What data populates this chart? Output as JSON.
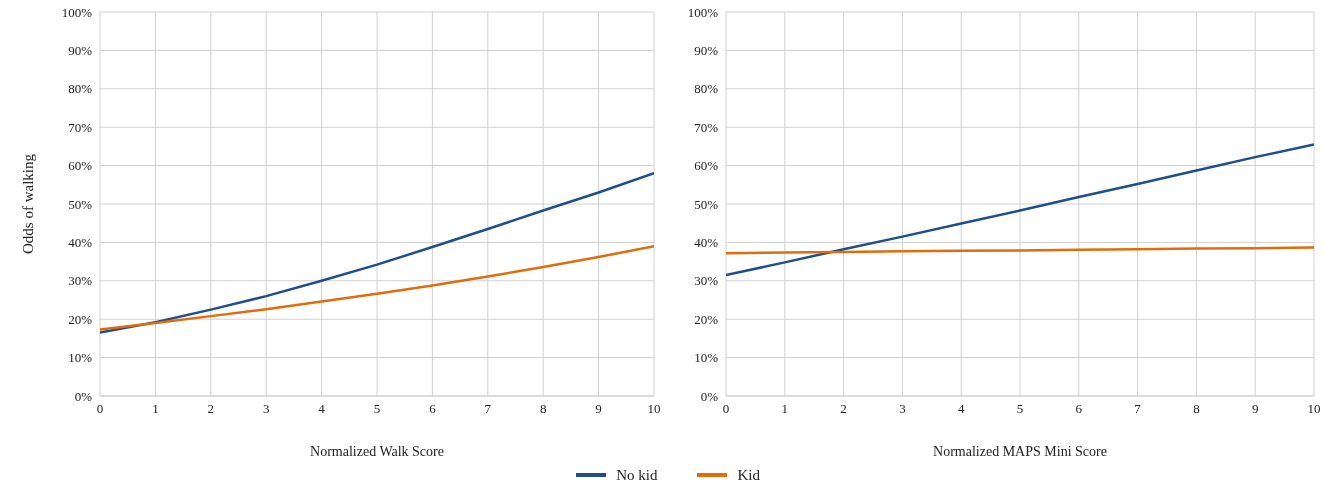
{
  "chart_data": [
    {
      "type": "line",
      "xlabel": "Normalized Walk Score",
      "ylabel": "Odds of walking",
      "x": [
        0,
        1,
        2,
        3,
        4,
        5,
        6,
        7,
        8,
        9,
        10
      ],
      "xlim": [
        0,
        10
      ],
      "xticks": [
        0,
        1,
        2,
        3,
        4,
        5,
        6,
        7,
        8,
        9,
        10
      ],
      "ylim": [
        0,
        100
      ],
      "yticks": [
        {
          "value": 0,
          "label": "0%"
        },
        {
          "value": 10,
          "label": "10%"
        },
        {
          "value": 20,
          "label": "20%"
        },
        {
          "value": 30,
          "label": "30%"
        },
        {
          "value": 40,
          "label": "40%"
        },
        {
          "value": 50,
          "label": "50%"
        },
        {
          "value": 60,
          "label": "60%"
        },
        {
          "value": 70,
          "label": "70%"
        },
        {
          "value": 80,
          "label": "80%"
        },
        {
          "value": 90,
          "label": "90%"
        },
        {
          "value": 100,
          "label": "100%"
        }
      ],
      "grid": true,
      "legend": "bottom",
      "marker": "none",
      "series": [
        {
          "name": "No kid",
          "color": "#1f4e8c",
          "values": [
            16.5,
            19.2,
            22.5,
            26,
            30,
            34.2,
            38.8,
            43.5,
            48.3,
            53,
            58
          ]
        },
        {
          "name": "Kid",
          "color": "#e36c0a",
          "values": [
            17.3,
            19,
            20.8,
            22.6,
            24.6,
            26.6,
            28.8,
            31.1,
            33.6,
            36.2,
            39
          ]
        }
      ]
    },
    {
      "type": "line",
      "xlabel": "Normalized MAPS Mini Score",
      "x": [
        0,
        1,
        2,
        3,
        4,
        5,
        6,
        7,
        8,
        9,
        10
      ],
      "xlim": [
        0,
        10
      ],
      "xticks": [
        0,
        1,
        2,
        3,
        4,
        5,
        6,
        7,
        8,
        9,
        10
      ],
      "ylim": [
        0,
        100
      ],
      "yticks": [
        {
          "value": 0,
          "label": "0%"
        },
        {
          "value": 10,
          "label": "10%"
        },
        {
          "value": 20,
          "label": "20%"
        },
        {
          "value": 30,
          "label": "30%"
        },
        {
          "value": 40,
          "label": "40%"
        },
        {
          "value": 50,
          "label": "50%"
        },
        {
          "value": 60,
          "label": "60%"
        },
        {
          "value": 70,
          "label": "70%"
        },
        {
          "value": 80,
          "label": "80%"
        },
        {
          "value": 90,
          "label": "90%"
        },
        {
          "value": 100,
          "label": "100%"
        }
      ],
      "grid": true,
      "marker": "none",
      "series": [
        {
          "color": "#1f4e8c",
          "values": [
            31.5,
            34.8,
            38.2,
            41.5,
            44.9,
            48.3,
            51.8,
            55.2,
            58.7,
            62.2,
            65.5
          ]
        },
        {
          "color": "#e36c0a",
          "values": [
            37.2,
            37.4,
            37.5,
            37.7,
            37.8,
            37.9,
            38.1,
            38.2,
            38.4,
            38.5,
            38.7
          ]
        }
      ]
    }
  ]
}
